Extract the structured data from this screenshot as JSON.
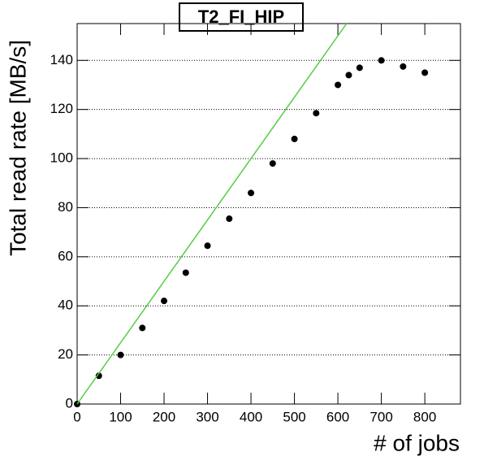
{
  "chart_data": {
    "type": "scatter",
    "title": "T2_FI_HIP",
    "x_label": "# of jobs",
    "y_label": "Total read rate [MB/s]",
    "xlim": [
      0,
      882
    ],
    "ylim": [
      0,
      155
    ],
    "xticks": [
      0,
      100,
      200,
      300,
      400,
      500,
      600,
      700,
      800
    ],
    "yticks": [
      0,
      20,
      40,
      60,
      80,
      100,
      120,
      140
    ],
    "grid": true,
    "series": [
      {
        "type": "scatter",
        "color": "#000000",
        "x": [
          0,
          50,
          100,
          150,
          200,
          250,
          300,
          350,
          400,
          450,
          500,
          550,
          600,
          625,
          650,
          700,
          750,
          800
        ],
        "values": [
          0,
          11.5,
          20,
          31,
          42,
          53.5,
          64.5,
          75.5,
          86,
          98,
          108,
          118.5,
          130,
          134,
          137,
          140,
          137.5,
          135
        ]
      },
      {
        "type": "line",
        "color": "#55cc44",
        "x": [
          0,
          620
        ],
        "values": [
          0,
          155
        ]
      }
    ]
  }
}
